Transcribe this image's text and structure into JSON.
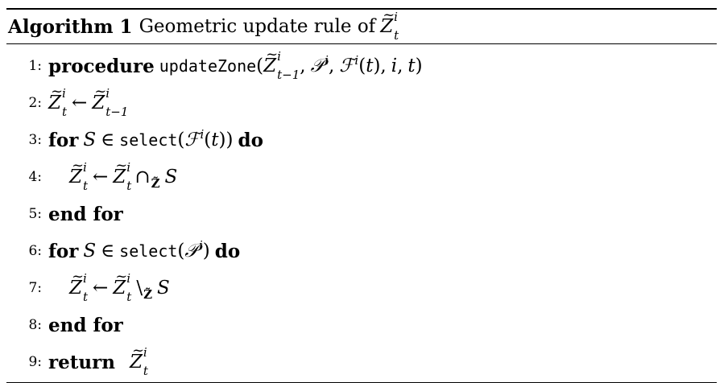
{
  "caption": {
    "label": "Algorithm 1",
    "text": "Geometric update rule of"
  },
  "lines": [
    {
      "num": "1:",
      "keyword": "procedure",
      "func": "updateZone"
    },
    {
      "num": "2:"
    },
    {
      "num": "3:",
      "keyword_for": "for",
      "func": "select",
      "keyword_do": "do"
    },
    {
      "num": "4:"
    },
    {
      "num": "5:",
      "keyword": "end for"
    },
    {
      "num": "6:",
      "keyword_for": "for",
      "func": "select",
      "keyword_do": "do"
    },
    {
      "num": "7:"
    },
    {
      "num": "8:",
      "keyword": "end for"
    },
    {
      "num": "9:",
      "keyword": "return"
    }
  ]
}
